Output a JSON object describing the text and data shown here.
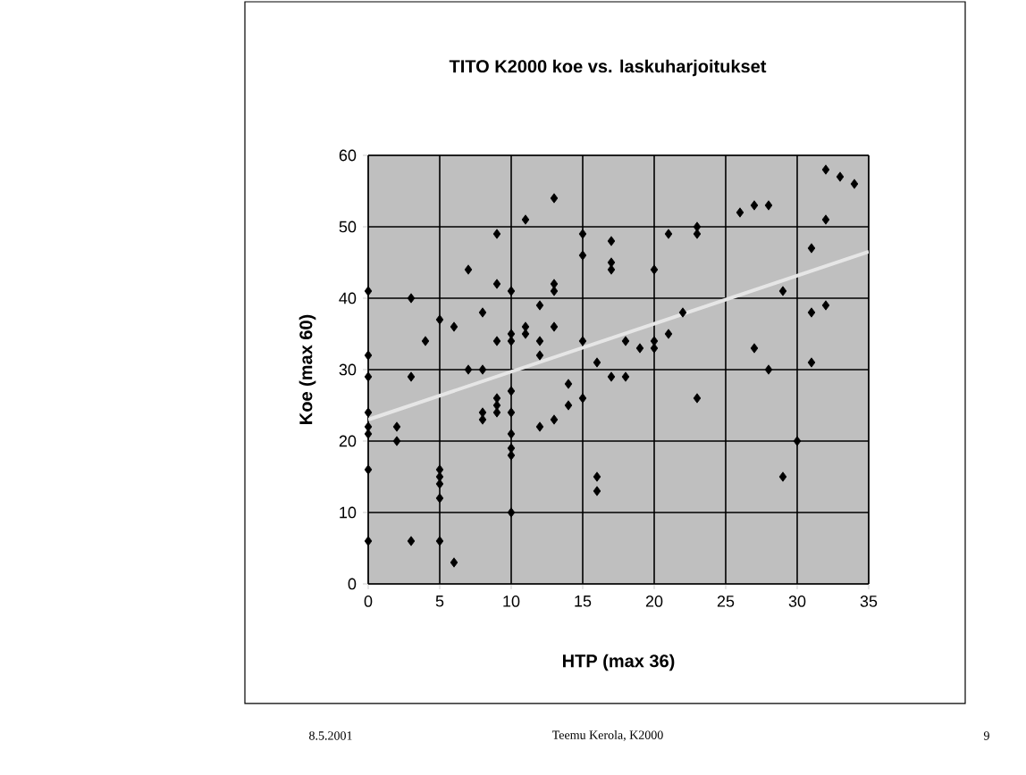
{
  "chart_data": {
    "type": "scatter",
    "title": "TITO K2000 koe vs. laskuharjoitukset",
    "xlabel": "HTP (max 36)",
    "ylabel": "Koe (max 60)",
    "xlim": [
      0,
      35
    ],
    "xticks": [
      0,
      5,
      10,
      15,
      20,
      25,
      30,
      35
    ],
    "ylim": [
      0,
      60
    ],
    "yticks": [
      0,
      10,
      20,
      30,
      40,
      50,
      60
    ],
    "grid": true,
    "series": [
      {
        "color": "#000000",
        "marker": "diamond",
        "x": [
          0,
          0,
          0,
          0,
          0,
          0,
          0,
          0,
          2,
          2,
          3,
          3,
          3,
          4,
          5,
          5,
          5,
          5,
          5,
          5,
          6,
          6,
          7,
          7,
          8,
          8,
          8,
          8,
          9,
          9,
          9,
          9,
          9,
          9,
          10,
          10,
          10,
          10,
          10,
          10,
          10,
          10,
          10,
          11,
          11,
          11,
          12,
          12,
          12,
          12,
          13,
          13,
          13,
          13,
          13,
          14,
          14,
          15,
          15,
          15,
          15,
          16,
          16,
          16,
          17,
          17,
          17,
          17,
          18,
          18,
          19,
          20,
          20,
          20,
          21,
          21,
          22,
          23,
          23,
          23,
          26,
          27,
          27,
          28,
          28,
          29,
          29,
          30,
          31,
          31,
          31,
          32,
          32,
          32,
          33,
          34
        ],
        "values": [
          41,
          32,
          29,
          24,
          22,
          21,
          16,
          6,
          22,
          20,
          40,
          29,
          6,
          34,
          37,
          16,
          15,
          14,
          12,
          6,
          36,
          3,
          44,
          30,
          38,
          30,
          24,
          23,
          49,
          42,
          34,
          26,
          25,
          24,
          41,
          35,
          34,
          27,
          24,
          21,
          19,
          18,
          10,
          51,
          36,
          35,
          39,
          34,
          32,
          22,
          54,
          42,
          41,
          36,
          23,
          28,
          25,
          49,
          46,
          34,
          26,
          31,
          15,
          13,
          48,
          45,
          44,
          29,
          34,
          29,
          33,
          44,
          34,
          33,
          49,
          35,
          38,
          50,
          49,
          26,
          52,
          53,
          33,
          53,
          30,
          41,
          15,
          20,
          47,
          38,
          31,
          58,
          51,
          39,
          57,
          56
        ]
      },
      {
        "type": "line",
        "marker": "none",
        "color": "#e6e6e6",
        "x": [
          0,
          35
        ],
        "values": [
          23,
          46.5
        ]
      }
    ],
    "annotations": [
      "8.5.2001",
      "Teemu Kerola, K2000",
      "9"
    ]
  }
}
